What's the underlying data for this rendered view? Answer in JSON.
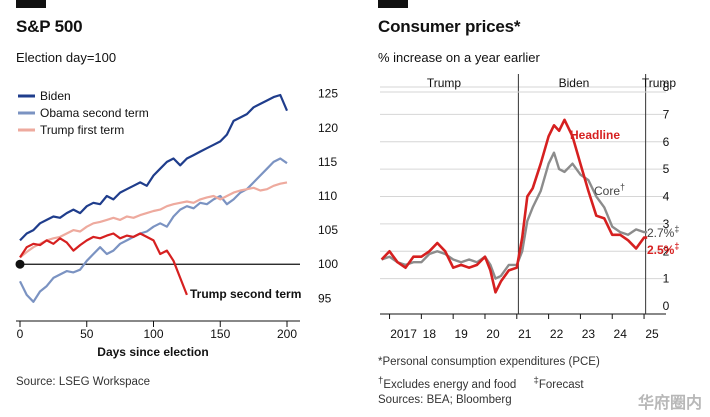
{
  "left": {
    "title": "S&P 500",
    "subtitle": "Election day=100",
    "source": "Source: LSEG Workspace",
    "chart_data": {
      "type": "line",
      "xlabel": "Days since election",
      "ylabel": "",
      "xlim": [
        0,
        200
      ],
      "ylim": [
        93,
        127
      ],
      "x_ticks": [
        0,
        50,
        100,
        150,
        200
      ],
      "y_ticks": [
        95,
        100,
        105,
        110,
        115,
        120,
        125
      ],
      "baseline": 100,
      "legend_placement": "top-left",
      "series": [
        {
          "name": "Biden",
          "color": "#1f3d8c",
          "x": [
            0,
            5,
            10,
            15,
            20,
            25,
            30,
            35,
            40,
            45,
            50,
            55,
            60,
            65,
            70,
            75,
            80,
            85,
            90,
            95,
            100,
            105,
            110,
            115,
            120,
            125,
            130,
            135,
            140,
            145,
            150,
            155,
            160,
            165,
            170,
            175,
            180,
            185,
            190,
            195,
            200
          ],
          "values": [
            103.5,
            104.5,
            105.0,
            106.0,
            106.5,
            107.0,
            106.8,
            107.5,
            108.0,
            107.5,
            108.5,
            109.0,
            108.8,
            110.0,
            109.5,
            110.5,
            111.0,
            111.5,
            112.0,
            111.5,
            113.0,
            114.0,
            115.0,
            115.5,
            114.5,
            115.5,
            116.0,
            116.5,
            117.0,
            117.5,
            118.0,
            119.0,
            121.0,
            121.5,
            122.0,
            123.0,
            123.5,
            124.0,
            124.5,
            124.8,
            122.5
          ]
        },
        {
          "name": "Obama second term",
          "color": "#7b93c2",
          "x": [
            0,
            5,
            10,
            15,
            20,
            25,
            30,
            35,
            40,
            45,
            50,
            55,
            60,
            65,
            70,
            75,
            80,
            85,
            90,
            95,
            100,
            105,
            110,
            115,
            120,
            125,
            130,
            135,
            140,
            145,
            150,
            155,
            160,
            165,
            170,
            175,
            180,
            185,
            190,
            195,
            200
          ],
          "values": [
            97.5,
            95.5,
            94.5,
            96.0,
            96.8,
            98.0,
            98.5,
            99.0,
            98.8,
            99.2,
            100.5,
            101.5,
            102.5,
            101.5,
            102.0,
            103.0,
            103.5,
            104.0,
            104.5,
            104.8,
            105.5,
            106.0,
            105.5,
            107.0,
            108.0,
            108.5,
            108.2,
            109.0,
            108.8,
            109.5,
            110.0,
            108.8,
            109.5,
            110.5,
            111.0,
            112.0,
            113.0,
            114.0,
            115.0,
            115.5,
            114.8
          ]
        },
        {
          "name": "Trump first term",
          "color": "#eeaa9e",
          "x": [
            0,
            5,
            10,
            15,
            20,
            25,
            30,
            35,
            40,
            45,
            50,
            55,
            60,
            65,
            70,
            75,
            80,
            85,
            90,
            95,
            100,
            105,
            110,
            115,
            120,
            125,
            130,
            135,
            140,
            145,
            150,
            155,
            160,
            165,
            170,
            175,
            180,
            185,
            190,
            195,
            200
          ],
          "values": [
            101.0,
            101.8,
            102.5,
            103.0,
            103.5,
            103.8,
            104.0,
            104.5,
            105.0,
            104.8,
            105.5,
            106.0,
            106.2,
            106.5,
            106.8,
            106.5,
            107.0,
            106.8,
            107.2,
            107.5,
            107.8,
            108.0,
            108.5,
            108.8,
            109.0,
            109.2,
            109.0,
            109.5,
            109.8,
            110.0,
            109.5,
            110.0,
            110.5,
            110.8,
            111.0,
            111.2,
            110.8,
            111.0,
            111.5,
            111.8,
            112.0
          ]
        },
        {
          "name": "Trump second term",
          "color": "#d62020",
          "x": [
            0,
            5,
            10,
            15,
            20,
            25,
            30,
            35,
            40,
            45,
            50,
            55,
            60,
            65,
            70,
            75,
            80,
            85,
            90,
            95,
            100,
            105,
            110,
            115,
            120,
            125
          ],
          "values": [
            101.0,
            102.5,
            103.0,
            102.8,
            103.5,
            103.0,
            103.8,
            103.2,
            102.0,
            102.8,
            103.5,
            104.0,
            103.8,
            104.2,
            104.5,
            103.8,
            104.2,
            104.0,
            104.5,
            104.0,
            103.5,
            101.5,
            102.0,
            100.5,
            98.0,
            95.5
          ]
        }
      ]
    }
  },
  "right": {
    "title": "Consumer prices*",
    "subtitle": "% increase on a year earlier",
    "notes": {
      "pce": "*Personal consumption expenditures (PCE)",
      "excl_mark": "†",
      "excl_text": "Excludes energy and food",
      "fc_mark": "‡",
      "fc_text": "Forecast",
      "sources": "Sources: BEA; Bloomberg"
    },
    "chart_data": {
      "type": "line",
      "xlabel": "",
      "ylabel": "",
      "xlim": [
        2016.7,
        2025.25
      ],
      "ylim": [
        0,
        8
      ],
      "y_ticks": [
        0,
        1,
        2,
        3,
        4,
        5,
        6,
        7,
        8
      ],
      "x_tick_labels": [
        {
          "x": 2017,
          "label": "2017"
        },
        {
          "x": 2018,
          "label": "18"
        },
        {
          "x": 2019,
          "label": "19"
        },
        {
          "x": 2020,
          "label": "20"
        },
        {
          "x": 2021,
          "label": "21"
        },
        {
          "x": 2022,
          "label": "22"
        },
        {
          "x": 2023,
          "label": "23"
        },
        {
          "x": 2024,
          "label": "24"
        },
        {
          "x": 2025,
          "label": "25"
        }
      ],
      "periods": [
        {
          "label": "Trump",
          "from": 2016.7,
          "to": 2021.05
        },
        {
          "label": "Biden",
          "from": 2021.05,
          "to": 2025.05
        },
        {
          "label": "Trump",
          "from": 2025.05,
          "to": 2025.25
        }
      ],
      "grid": true,
      "series": [
        {
          "name": "Core",
          "marker": "†",
          "color": "#8c8c8c",
          "x": [
            2016.75,
            2017.0,
            2017.25,
            2017.5,
            2017.75,
            2018.0,
            2018.25,
            2018.5,
            2018.75,
            2019.0,
            2019.25,
            2019.5,
            2019.75,
            2020.0,
            2020.17,
            2020.33,
            2020.5,
            2020.75,
            2021.0,
            2021.17,
            2021.33,
            2021.5,
            2021.75,
            2022.0,
            2022.17,
            2022.33,
            2022.5,
            2022.75,
            2023.0,
            2023.25,
            2023.5,
            2023.75,
            2024.0,
            2024.25,
            2024.5,
            2024.75,
            2025.0,
            2025.1
          ],
          "values": [
            1.7,
            1.8,
            1.6,
            1.5,
            1.6,
            1.6,
            1.9,
            2.0,
            1.9,
            1.7,
            1.6,
            1.7,
            1.6,
            1.8,
            1.5,
            1.0,
            1.1,
            1.5,
            1.5,
            2.0,
            3.1,
            3.6,
            4.2,
            5.2,
            5.6,
            5.0,
            4.9,
            5.2,
            4.8,
            4.6,
            4.0,
            3.6,
            2.9,
            2.7,
            2.6,
            2.8,
            2.7,
            2.7
          ]
        },
        {
          "name": "Headline",
          "color": "#d62020",
          "x": [
            2016.75,
            2017.0,
            2017.25,
            2017.5,
            2017.75,
            2018.0,
            2018.25,
            2018.5,
            2018.75,
            2019.0,
            2019.25,
            2019.5,
            2019.75,
            2020.0,
            2020.17,
            2020.33,
            2020.5,
            2020.75,
            2021.0,
            2021.17,
            2021.33,
            2021.5,
            2021.75,
            2022.0,
            2022.17,
            2022.33,
            2022.5,
            2022.75,
            2023.0,
            2023.25,
            2023.5,
            2023.75,
            2024.0,
            2024.25,
            2024.5,
            2024.75,
            2025.0,
            2025.1
          ],
          "values": [
            1.7,
            2.0,
            1.6,
            1.4,
            1.8,
            1.8,
            2.0,
            2.3,
            2.0,
            1.4,
            1.5,
            1.4,
            1.5,
            1.8,
            1.3,
            0.5,
            0.9,
            1.3,
            1.4,
            2.5,
            4.0,
            4.3,
            5.2,
            6.2,
            6.6,
            6.4,
            6.8,
            6.2,
            5.2,
            4.2,
            3.3,
            3.2,
            2.6,
            2.6,
            2.4,
            2.1,
            2.5,
            2.5
          ]
        }
      ],
      "end_labels": [
        {
          "series": "Core",
          "text": "2.7%",
          "marker": "‡"
        },
        {
          "series": "Headline",
          "text": "2.5%",
          "marker": "‡"
        }
      ]
    }
  },
  "watermark": "华府圈内"
}
